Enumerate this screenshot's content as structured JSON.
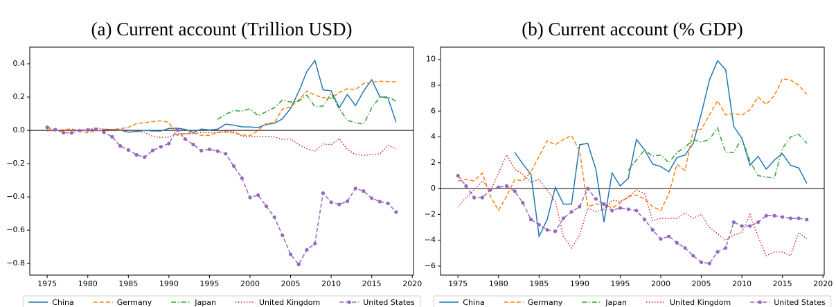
{
  "chart_data": [
    {
      "type": "line",
      "title": "(a) Current account (Trillion USD)",
      "x": [
        1975,
        1976,
        1977,
        1978,
        1979,
        1980,
        1981,
        1982,
        1983,
        1984,
        1985,
        1986,
        1987,
        1988,
        1989,
        1990,
        1991,
        1992,
        1993,
        1994,
        1995,
        1996,
        1997,
        1998,
        1999,
        2000,
        2001,
        2002,
        2003,
        2004,
        2005,
        2006,
        2007,
        2008,
        2009,
        2010,
        2011,
        2012,
        2013,
        2014,
        2015,
        2016,
        2017,
        2018
      ],
      "xlim": [
        1972.85,
        2020.15
      ],
      "xticks": [
        1975,
        1980,
        1985,
        1990,
        1995,
        2000,
        2005,
        2010,
        2015,
        2020
      ],
      "ylim": [
        -0.87,
        0.5
      ],
      "yticks": [
        {
          "value": -0.8,
          "label": "−0.8"
        },
        {
          "value": -0.6,
          "label": "−0.6"
        },
        {
          "value": -0.4,
          "label": "−0.4"
        },
        {
          "value": -0.2,
          "label": "−0.2"
        },
        {
          "value": 0,
          "label": "0.0"
        },
        0.2,
        0.4
      ],
      "legend": "below",
      "series": [
        {
          "name": "China",
          "color": "#1f77b4",
          "linestyle": "solid",
          "marker": "none",
          "values": [
            null,
            null,
            null,
            null,
            null,
            null,
            null,
            0.006,
            0.004,
            0.002,
            -0.011,
            -0.007,
            0.0,
            -0.004,
            -0.004,
            0.012,
            0.013,
            0.006,
            -0.012,
            0.008,
            0.002,
            0.007,
            0.037,
            0.031,
            0.021,
            0.02,
            0.017,
            0.035,
            0.043,
            0.069,
            0.132,
            0.232,
            0.353,
            0.42,
            0.243,
            0.238,
            0.136,
            0.215,
            0.148,
            0.236,
            0.304,
            0.202,
            0.195,
            0.049
          ]
        },
        {
          "name": "Germany",
          "color": "#ff7f0e",
          "linestyle": "dashed",
          "marker": "none",
          "values": [
            0.004,
            0.001,
            0.004,
            0.009,
            -0.006,
            -0.014,
            -0.004,
            0.005,
            0.005,
            0.01,
            0.018,
            0.04,
            0.046,
            0.053,
            0.057,
            0.048,
            -0.03,
            -0.018,
            -0.015,
            -0.03,
            -0.03,
            -0.014,
            -0.01,
            -0.015,
            -0.027,
            -0.032,
            0.0,
            0.041,
            0.046,
            0.128,
            0.14,
            0.182,
            0.236,
            0.211,
            0.197,
            0.192,
            0.228,
            0.25,
            0.245,
            0.282,
            0.288,
            0.295,
            0.293,
            0.291
          ]
        },
        {
          "name": "Japan",
          "color": "#2ca02c",
          "linestyle": "dashdot",
          "marker": "none",
          "values": [
            null,
            null,
            null,
            null,
            null,
            null,
            null,
            null,
            null,
            null,
            null,
            null,
            null,
            null,
            null,
            null,
            null,
            null,
            null,
            null,
            null,
            0.066,
            0.097,
            0.119,
            0.115,
            0.13,
            0.088,
            0.112,
            0.136,
            0.182,
            0.17,
            0.175,
            0.212,
            0.142,
            0.146,
            0.221,
            0.129,
            0.06,
            0.046,
            0.037,
            0.136,
            0.198,
            0.202,
            0.175
          ]
        },
        {
          "name": "United Kingdom",
          "color": "#d62728",
          "linestyle": "dotted",
          "marker": "none",
          "values": [
            -0.003,
            -0.002,
            0.0,
            0.002,
            -0.001,
            0.007,
            0.014,
            0.008,
            0.005,
            0.002,
            0.003,
            -0.003,
            -0.012,
            -0.036,
            -0.043,
            -0.04,
            -0.02,
            -0.022,
            -0.02,
            -0.012,
            -0.015,
            -0.012,
            -0.006,
            -0.008,
            -0.035,
            -0.04,
            -0.036,
            -0.038,
            -0.04,
            -0.055,
            -0.052,
            -0.085,
            -0.11,
            -0.124,
            -0.082,
            -0.086,
            -0.05,
            -0.115,
            -0.145,
            -0.15,
            -0.145,
            -0.142,
            -0.09,
            -0.11
          ]
        },
        {
          "name": "United States",
          "color": "#9467bd",
          "linestyle": "dashed",
          "marker": "o",
          "values": [
            0.018,
            0.004,
            -0.014,
            -0.015,
            -0.001,
            0.002,
            0.005,
            -0.012,
            -0.039,
            -0.094,
            -0.118,
            -0.147,
            -0.161,
            -0.121,
            -0.099,
            -0.079,
            0.003,
            -0.052,
            -0.085,
            -0.122,
            -0.114,
            -0.125,
            -0.141,
            -0.215,
            -0.287,
            -0.404,
            -0.389,
            -0.456,
            -0.522,
            -0.631,
            -0.745,
            -0.806,
            -0.718,
            -0.681,
            -0.377,
            -0.432,
            -0.445,
            -0.426,
            -0.349,
            -0.365,
            -0.408,
            -0.428,
            -0.439,
            -0.491
          ]
        }
      ]
    },
    {
      "type": "line",
      "title": "(b) Current account (% GDP)",
      "x": [
        1975,
        1976,
        1977,
        1978,
        1979,
        1980,
        1981,
        1982,
        1983,
        1984,
        1985,
        1986,
        1987,
        1988,
        1989,
        1990,
        1991,
        1992,
        1993,
        1994,
        1995,
        1996,
        1997,
        1998,
        1999,
        2000,
        2001,
        2002,
        2003,
        2004,
        2005,
        2006,
        2007,
        2008,
        2009,
        2010,
        2011,
        2012,
        2013,
        2014,
        2015,
        2016,
        2017,
        2018
      ],
      "xlim": [
        1972.85,
        2020.15
      ],
      "xticks": [
        1975,
        1980,
        1985,
        1990,
        1995,
        2000,
        2005,
        2010,
        2015,
        2020
      ],
      "ylim": [
        -6.7,
        10.95
      ],
      "yticks": [
        {
          "value": -6,
          "label": "−6"
        },
        {
          "value": -4,
          "label": "−4"
        },
        {
          "value": -2,
          "label": "−2"
        },
        0,
        2,
        4,
        6,
        8,
        10
      ],
      "legend": "below",
      "series": [
        {
          "name": "China",
          "color": "#1f77b4",
          "linestyle": "solid",
          "marker": "none",
          "values": [
            null,
            null,
            null,
            null,
            null,
            null,
            null,
            2.8,
            1.9,
            1.1,
            -3.7,
            -2.4,
            0.1,
            -1.2,
            -1.2,
            3.4,
            3.5,
            1.5,
            -2.6,
            1.2,
            0.2,
            0.8,
            3.8,
            3.0,
            1.9,
            1.7,
            1.3,
            2.4,
            2.6,
            3.5,
            5.8,
            8.4,
            9.9,
            9.2,
            4.8,
            3.9,
            1.8,
            2.5,
            1.5,
            2.2,
            2.7,
            1.8,
            1.6,
            0.4
          ]
        },
        {
          "name": "Germany",
          "color": "#ff7f0e",
          "linestyle": "dashed",
          "marker": "none",
          "values": [
            0.6,
            0.7,
            0.6,
            1.2,
            -0.6,
            -1.7,
            -0.6,
            0.7,
            0.6,
            1.3,
            2.5,
            3.7,
            3.4,
            3.8,
            4.1,
            2.9,
            -1.4,
            -1.2,
            -1.2,
            -1.5,
            -1.1,
            -0.6,
            -0.5,
            -0.8,
            -1.4,
            -1.7,
            -0.4,
            1.9,
            1.4,
            4.5,
            4.6,
            5.7,
            6.8,
            5.7,
            5.8,
            5.7,
            6.1,
            7.1,
            6.5,
            7.2,
            8.5,
            8.4,
            8.0,
            7.3
          ]
        },
        {
          "name": "Japan",
          "color": "#2ca02c",
          "linestyle": "dashdot",
          "marker": "none",
          "values": [
            null,
            null,
            null,
            null,
            null,
            null,
            null,
            null,
            null,
            null,
            null,
            null,
            null,
            null,
            null,
            null,
            null,
            null,
            null,
            null,
            null,
            1.4,
            2.2,
            3.0,
            2.5,
            2.6,
            2.0,
            2.8,
            3.2,
            3.8,
            3.6,
            3.8,
            4.7,
            2.8,
            2.8,
            3.9,
            2.1,
            1.0,
            0.9,
            0.8,
            3.1,
            4.0,
            4.2,
            3.5
          ]
        },
        {
          "name": "United Kingdom",
          "color": "#d62728",
          "linestyle": "dotted",
          "marker": "none",
          "values": [
            -1.4,
            -0.7,
            -0.1,
            0.6,
            -0.2,
            1.2,
            2.6,
            1.5,
            1.1,
            0.5,
            0.7,
            -0.1,
            -1.0,
            -3.7,
            -4.6,
            -3.6,
            -1.5,
            -1.8,
            -1.6,
            -0.9,
            -1.0,
            -0.7,
            -0.1,
            -0.4,
            -2.5,
            -2.3,
            -2.3,
            -2.3,
            -1.9,
            -2.3,
            -2.0,
            -3.0,
            -3.5,
            -4.0,
            -3.6,
            -3.4,
            -2.0,
            -3.7,
            -5.2,
            -4.9,
            -4.9,
            -5.2,
            -3.4,
            -3.9
          ]
        },
        {
          "name": "United States",
          "color": "#9467bd",
          "linestyle": "dashed",
          "marker": "o",
          "values": [
            1.0,
            0.2,
            -0.7,
            -0.7,
            -0.1,
            0.1,
            0.2,
            -0.2,
            -1.1,
            -2.4,
            -2.8,
            -3.2,
            -3.3,
            -2.3,
            -1.8,
            -1.4,
            0.0,
            -0.8,
            -1.2,
            -1.7,
            -1.5,
            -1.6,
            -1.7,
            -2.4,
            -3.2,
            -3.9,
            -3.7,
            -4.2,
            -4.6,
            -5.2,
            -5.7,
            -5.8,
            -4.9,
            -4.6,
            -2.6,
            -2.9,
            -2.9,
            -2.6,
            -2.1,
            -2.1,
            -2.2,
            -2.3,
            -2.3,
            -2.4
          ]
        }
      ]
    }
  ]
}
